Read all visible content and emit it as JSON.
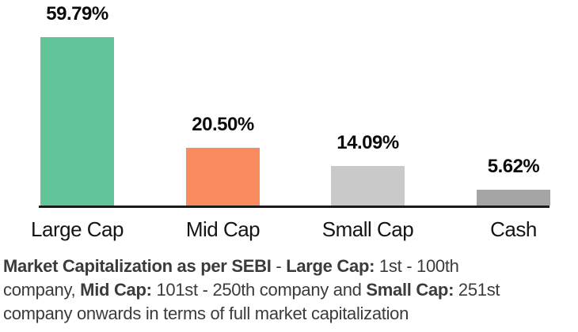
{
  "chart_data": {
    "type": "bar",
    "categories": [
      "Large Cap",
      "Mid Cap",
      "Small Cap",
      "Cash"
    ],
    "values": [
      59.79,
      20.5,
      14.09,
      5.62
    ],
    "value_labels": [
      "59.79%",
      "20.50%",
      "14.09%",
      "5.62%"
    ],
    "bar_colors": [
      "#61c599",
      "#f88c5f",
      "#c9c9c9",
      "#a5a5a5"
    ],
    "title": "",
    "xlabel": "",
    "ylabel": "",
    "ylim": [
      0,
      65
    ],
    "grid": false,
    "legend": false,
    "annotations": "value labels shown above each bar"
  },
  "caption": {
    "lines": [
      [
        {
          "t": "Market Capitalization as per SEBI",
          "b": true
        },
        {
          "t": " - ",
          "b": false
        },
        {
          "t": "Large Cap:",
          "b": true
        },
        {
          "t": " 1st - 100th",
          "b": false
        }
      ],
      [
        {
          "t": "company, ",
          "b": false
        },
        {
          "t": "Mid Cap:",
          "b": true
        },
        {
          "t": " 101st - 250th company and ",
          "b": false
        },
        {
          "t": "Small Cap:",
          "b": true
        },
        {
          "t": " 251st",
          "b": false
        }
      ],
      [
        {
          "t": "company onwards in terms of full market capitalization",
          "b": false
        }
      ]
    ],
    "text_color": "#3b3b3b"
  },
  "colors": {
    "background": "#ffffff",
    "axis_line": "#1a1a1a",
    "value_label_text": "#0b0b0b",
    "category_label_text": "#141414"
  }
}
